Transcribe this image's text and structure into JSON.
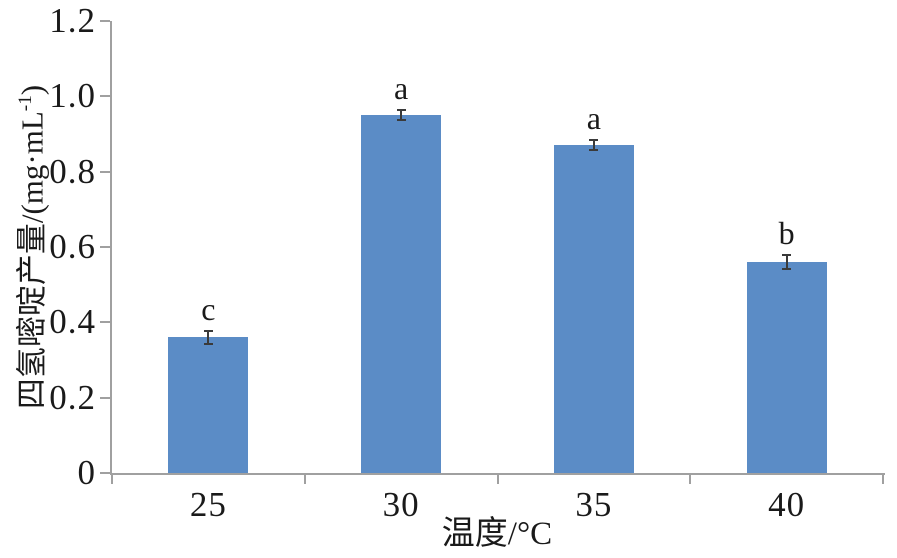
{
  "chart_data": {
    "type": "bar",
    "title": "",
    "xlabel": "温度/°C",
    "ylabel": {
      "prefix": "四氢嘧啶产量/(mg·mL",
      "superscript": "-1",
      "suffix": ")"
    },
    "categories": [
      "25",
      "30",
      "35",
      "40"
    ],
    "values": [
      0.36,
      0.95,
      0.87,
      0.56
    ],
    "errors": [
      0.018,
      0.013,
      0.013,
      0.019
    ],
    "sig_letters": [
      "c",
      "a",
      "a",
      "b"
    ],
    "ylim": [
      0,
      1.2
    ],
    "yticks": [
      {
        "label": "0",
        "value": 0
      },
      {
        "label": "0.2",
        "value": 0.2
      },
      {
        "label": "0.4",
        "value": 0.4
      },
      {
        "label": "0.6",
        "value": 0.6
      },
      {
        "label": "0.8",
        "value": 0.8
      },
      {
        "label": "1.0",
        "value": 1.0
      },
      {
        "label": "1.2",
        "value": 1.2
      }
    ],
    "grid": false,
    "legend": "none",
    "colors": {
      "bar": "#5B8CC6",
      "axis": "#A0A0A0",
      "error_bar": "#3a3a3a",
      "text": "#1A1A1A"
    }
  }
}
